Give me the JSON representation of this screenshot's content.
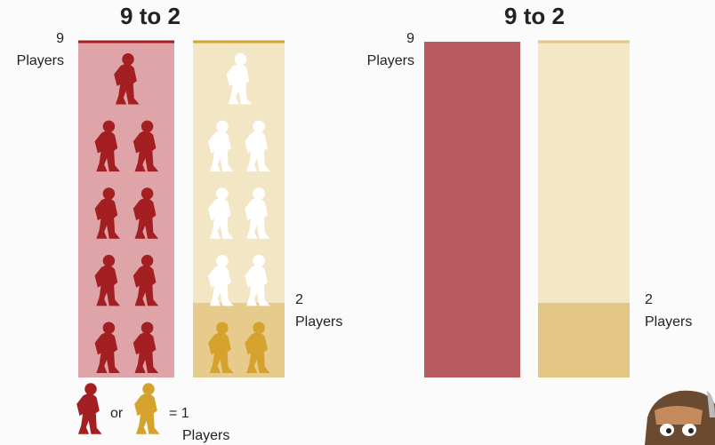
{
  "chart_data": [
    {
      "type": "pictogram",
      "title": "9 to 2",
      "ylim": [
        0,
        9
      ],
      "series": [
        {
          "values": [
            9
          ],
          "unit": "Players",
          "color": "#a31f22",
          "background": "#dea4a8"
        },
        {
          "values": [
            2
          ],
          "unit": "Players",
          "color": "#d6a22e",
          "background": "#e6cb8c",
          "empty_background": "#f3e6c4"
        }
      ],
      "legend": {
        "connector": "or",
        "equals": "= 1",
        "unit": "Players"
      }
    },
    {
      "type": "bar",
      "title": "9 to 2",
      "ylim": [
        0,
        9
      ],
      "series": [
        {
          "values": [
            9
          ],
          "unit": "Players",
          "color": "#b85c62"
        },
        {
          "values": [
            2
          ],
          "unit": "Players",
          "color": "#e3c684",
          "empty_background": "#f4e7c6"
        }
      ]
    }
  ]
}
